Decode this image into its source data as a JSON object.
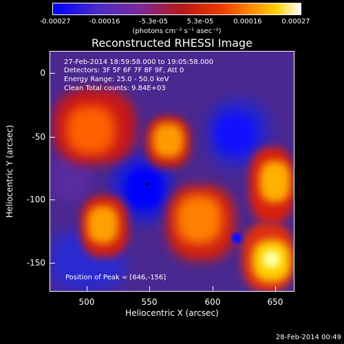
{
  "colorbar": {
    "ticks": [
      "-0.00027",
      "-0.00016",
      "-5.3e-05",
      "5.3e-05",
      "0.00016",
      "0.00027"
    ],
    "units": "(photons cm⁻² s⁻¹ asec⁻²)"
  },
  "title": "Reconstructed RHESSI Image",
  "info": {
    "time_range": "27-Feb-2014 18:59:58.000 to 19:05:58.000",
    "detectors": "Detectors: 3F 5F 6F 7F 8F 9F, Att 0",
    "energy_range": "Energy Range: 25.0 - 50.0 keV",
    "clean_counts": "Clean    Total counts: 9.84E+03",
    "peak": "Position of Peak = [646,-156]"
  },
  "colors": {
    "background": "#000000",
    "low": "#0000ff",
    "mid": "#7a2a9a",
    "high": "#ffffff",
    "hot": "#ff8a00"
  },
  "chart_data": {
    "type": "heatmap",
    "title": "Reconstructed RHESSI Image",
    "xlabel": "Heliocentric X (arcsec)",
    "ylabel": "Heliocentric Y (arcsec)",
    "xlim": [
      472,
      664
    ],
    "ylim": [
      -172,
      16
    ],
    "x_ticks": [
      "500",
      "550",
      "600",
      "650"
    ],
    "y_ticks": [
      "0",
      "-50",
      "-100",
      "-150"
    ],
    "colorbar_range": [
      -0.00027,
      0.00027
    ],
    "peak_position": [
      646,
      -156
    ]
  },
  "timestamp": "28-Feb-2014 00:49"
}
